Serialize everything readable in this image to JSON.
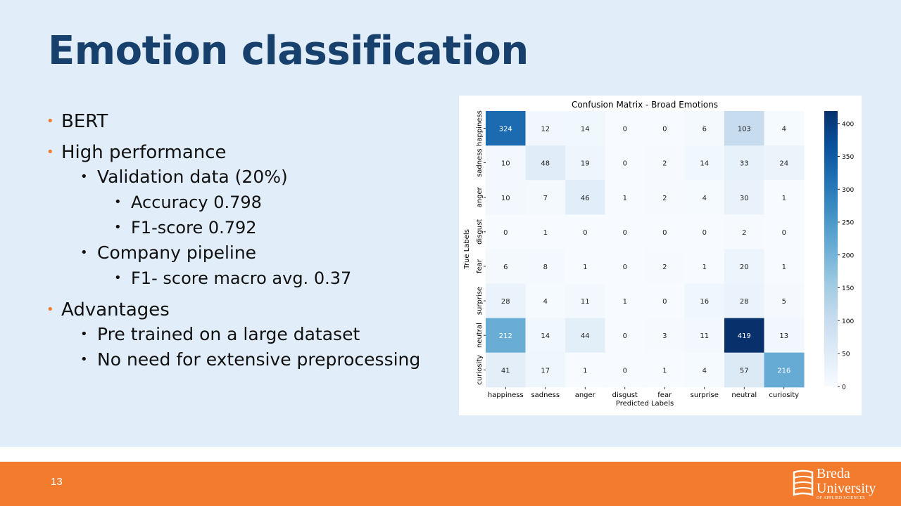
{
  "slide": {
    "title": "Emotion classification",
    "page_number": "13"
  },
  "bullets": [
    {
      "level": 1,
      "text": "BERT"
    },
    {
      "level": 1,
      "text": "High performance"
    },
    {
      "level": 2,
      "text": "Validation data (20%)"
    },
    {
      "level": 3,
      "text": "Accuracy 0.798"
    },
    {
      "level": 3,
      "text": "F1-score 0.792"
    },
    {
      "level": 2,
      "text": "Company pipeline"
    },
    {
      "level": 3,
      "text": "F1- score macro avg. 0.37"
    },
    {
      "level": 1,
      "text": "Advantages"
    },
    {
      "level": 2,
      "text": "Pre trained on a large dataset"
    },
    {
      "level": 2,
      "text": "No need for extensive preprocessing"
    }
  ],
  "logo": {
    "line1": "Breda",
    "line2": "University",
    "line3": "OF APPLIED SCIENCES"
  },
  "colors": {
    "title": "#17406d",
    "bullet_accent": "#ef7d2e",
    "footer": "#f27b2d",
    "slide_background": "#e1eef9"
  },
  "chart_data": {
    "type": "heatmap",
    "title": "Confusion Matrix - Broad Emotions",
    "xlabel": "Predicted Labels",
    "ylabel": "True Labels",
    "x_categories": [
      "happiness",
      "sadness",
      "anger",
      "disgust",
      "fear",
      "surprise",
      "neutral",
      "curiosity"
    ],
    "y_categories": [
      "happiness",
      "sadness",
      "anger",
      "disgust",
      "fear",
      "surprise",
      "neutral",
      "curiosity"
    ],
    "matrix": [
      [
        324,
        12,
        14,
        0,
        0,
        6,
        103,
        4
      ],
      [
        10,
        48,
        19,
        0,
        2,
        14,
        33,
        24
      ],
      [
        10,
        7,
        46,
        1,
        2,
        4,
        30,
        1
      ],
      [
        0,
        1,
        0,
        0,
        0,
        0,
        2,
        0
      ],
      [
        6,
        8,
        1,
        0,
        2,
        1,
        20,
        1
      ],
      [
        28,
        4,
        11,
        1,
        0,
        16,
        28,
        5
      ],
      [
        212,
        14,
        44,
        0,
        3,
        11,
        419,
        13
      ],
      [
        41,
        17,
        1,
        0,
        1,
        4,
        57,
        216
      ]
    ],
    "colorbar_ticks": [
      0,
      50,
      100,
      150,
      200,
      250,
      300,
      350,
      400
    ],
    "colorbar_range": [
      0,
      419
    ],
    "colormap": "Blues"
  }
}
